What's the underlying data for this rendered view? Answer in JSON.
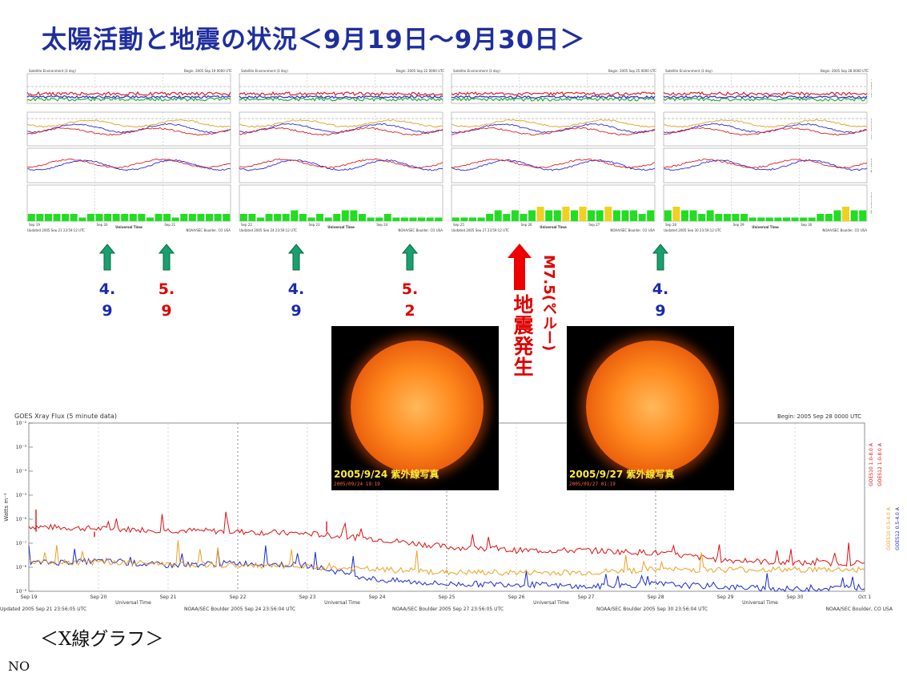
{
  "title": "太陽活動と地震の状況＜9月19日～9月30日＞",
  "colors": {
    "title": "#1f2e9e",
    "quake": "#e00000",
    "arrow_green": "#159a6a",
    "mag_blue": "#1a2ab0",
    "mag_red": "#e00000"
  },
  "panels": [
    {
      "header_left": "Satellite Environment (3 day)",
      "header_right": "Begin:  2005 Sep 19 0000 UTC",
      "footer_left": "Updated 2005 Sep 21 23:59:12 UTC",
      "footer_right": "NOAA/SEC Boulder, CO USA",
      "days": [
        "Sep 19",
        "Sep 20",
        "Sep 21"
      ],
      "kp_colors": [
        "g",
        "g",
        "g",
        "g",
        "g",
        "g",
        "g",
        "g",
        "g",
        "g",
        "g",
        "g",
        "g",
        "g",
        "g",
        "g",
        "g",
        "g",
        "g",
        "g",
        "g",
        "g",
        "g",
        "g"
      ],
      "kp_vals": [
        2,
        2,
        2,
        2,
        2,
        2,
        1,
        2,
        2,
        2,
        2,
        2,
        2,
        2,
        1,
        2,
        2,
        1,
        2,
        2,
        2,
        2,
        2,
        2
      ]
    },
    {
      "header_left": "Satellite Environment (3 day)",
      "header_right": "Begin:  2005 Sep 22 0000 UTC",
      "footer_left": "Updated 2005 Sep 24 23:59:12 UTC",
      "footer_right": "NOAA/SEC Boulder, CO USA",
      "days": [
        "Sep 22",
        "Sep 23",
        "Sep 24"
      ],
      "kp_colors": [
        "g",
        "g",
        "g",
        "g",
        "g",
        "g",
        "g",
        "g",
        "g",
        "g",
        "g",
        "g",
        "g",
        "g",
        "g",
        "g",
        "g",
        "g",
        "g",
        "g",
        "g",
        "g",
        "g",
        "g"
      ],
      "kp_vals": [
        2,
        2,
        1,
        2,
        2,
        2,
        3,
        2,
        1,
        2,
        1,
        2,
        3,
        3,
        2,
        1,
        1,
        2,
        1,
        1,
        1,
        1,
        1,
        1
      ]
    },
    {
      "header_left": "Satellite Environment (3 day)",
      "header_right": "Begin:  2005 Sep 25 0000 UTC",
      "footer_left": "Updated 2005 Sep 27 23:59:12 UTC",
      "footer_right": "NOAA/SEC Boulder, CO USA",
      "days": [
        "Sep 25",
        "Sep 26",
        "Sep 27"
      ],
      "kp_colors": [
        "g",
        "g",
        "g",
        "g",
        "g",
        "g",
        "g",
        "g",
        "g",
        "g",
        "y",
        "g",
        "g",
        "y",
        "g",
        "y",
        "g",
        "g",
        "y",
        "g",
        "g",
        "g",
        "g",
        "g"
      ],
      "kp_vals": [
        1,
        1,
        1,
        1,
        2,
        3,
        2,
        3,
        2,
        3,
        4,
        3,
        3,
        4,
        3,
        4,
        3,
        3,
        4,
        3,
        3,
        3,
        2,
        3
      ]
    },
    {
      "header_left": "Satellite Environment (3 day)",
      "header_right": "Begin:  2005 Sep 28 0000 UTC",
      "footer_left": "Updated 2005 Sep 30 23:59:12 UTC",
      "footer_right": "NOAA/SEC Boulder, CO USA",
      "days": [
        "Sep 28",
        "Sep 29",
        "Sep 30"
      ],
      "kp_colors": [
        "g",
        "y",
        "g",
        "g",
        "g",
        "g",
        "g",
        "g",
        "g",
        "g",
        "g",
        "g",
        "g",
        "g",
        "g",
        "g",
        "g",
        "g",
        "g",
        "g",
        "g",
        "y",
        "g",
        "g"
      ],
      "kp_vals": [
        3,
        4,
        3,
        3,
        2,
        3,
        2,
        2,
        2,
        2,
        1,
        1,
        1,
        1,
        1,
        1,
        1,
        1,
        2,
        2,
        3,
        4,
        3,
        3
      ]
    }
  ],
  "panel_axis_labels": {
    "panel1": "Proton Flux",
    "panel2": "Electron Flux",
    "panel3": "GOES Hp",
    "panel4": "Estimated Kp",
    "xlabel": "Universal Time"
  },
  "arrows": [
    {
      "mag": "4.9",
      "color": "#1a2ab0"
    },
    {
      "mag": "5.9",
      "color": "#e00000"
    },
    {
      "mag": "4.9",
      "color": "#1a2ab0"
    },
    {
      "mag": "5.2",
      "color": "#e00000"
    },
    {
      "mag": "4.9",
      "color": "#1a2ab0"
    }
  ],
  "quake": {
    "mag_label": "M7.5(ペルー)",
    "text": "地震発生"
  },
  "sun_images": [
    {
      "caption": "2005/9/24  紫外線写真",
      "sub": "2005/09/24 19:19"
    },
    {
      "caption": "2005/9/27  紫外線写真",
      "sub": "2005/09/27 01:19"
    }
  ],
  "chart_data": {
    "type": "line",
    "title": "GOES Xray Flux (5 minute data)",
    "header_left": "GOES Xray Flux (5 minute data)",
    "header_right": "Begin:  2005 Sep 28 0000 UTC",
    "ylabel": "Watts m⁻²",
    "xlabel": "Universal Time",
    "yscale": "log",
    "ylim": [
      1e-09,
      0.01
    ],
    "yticks": [
      "10⁻²",
      "10⁻³",
      "10⁻⁴",
      "10⁻⁵",
      "10⁻⁶",
      "10⁻⁷",
      "10⁻⁸",
      "10⁻⁹"
    ],
    "x": [
      "Sep 19",
      "Sep 20",
      "Sep 21",
      "Sep 22",
      "Sep 23",
      "Sep 24",
      "Sep 25",
      "Sep 26",
      "Sep 27",
      "Sep 28",
      "Sep 29",
      "Sep 30",
      "Oct 1"
    ],
    "legend_right": [
      "GOES10 1.0-8.0 A",
      "GOES12 1.0-8.0 A",
      "GOES10 0.5-4.0 A",
      "GOES12 0.5-4.0 A"
    ],
    "footers": [
      "Updated 2005 Sep 21 23:56:05 UTC",
      "NOAA/SEC Boulder 2005 Sep 24 23:56:04 UTC",
      "NOAA/SEC Boulder 2005 Sep 27 23:56:05 UTC",
      "NOAA/SEC Boulder 2005 Sep 30 23:56:04 UTC",
      "NOAA/SEC Boulder, CO USA"
    ],
    "series": [
      {
        "name": "GOES10 1.0-8.0 A",
        "color": "#e01010",
        "values": [
          5e-07,
          4e-07,
          3.5e-07,
          3e-07,
          2.5e-07,
          1.5e-07,
          7e-08,
          5e-08,
          5e-08,
          4e-08,
          2e-08,
          1.5e-08,
          1.5e-08
        ]
      },
      {
        "name": "GOES12 0.5-4.0 A",
        "color": "#1a2ad0",
        "values": [
          1.5e-08,
          1.8e-08,
          1.2e-08,
          1.5e-08,
          1.2e-08,
          3e-09,
          2e-09,
          2e-09,
          1.5e-09,
          2e-09,
          1.5e-09,
          1.2e-09,
          1.5e-09
        ]
      },
      {
        "name": "GOES10 0.5-4.0 A",
        "color": "#f0a020",
        "values": [
          1.8e-08,
          1.6e-08,
          1.4e-08,
          1.2e-08,
          1e-08,
          8e-09,
          6e-09,
          6e-09,
          6e-09,
          8e-09,
          8e-09,
          8e-09,
          8e-09
        ]
      }
    ]
  },
  "caption": "＜X線グラフ＞",
  "no_label": "NO"
}
